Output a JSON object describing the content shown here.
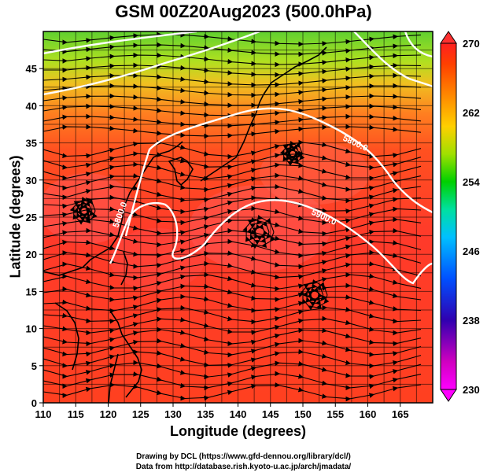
{
  "title": "GSM 00Z20Aug2023 (500.0hPa)",
  "xlabel": "Longitude (degrees)",
  "ylabel": "Latitude  (degrees)",
  "credits": [
    "Drawing by DCL (https://www.gfd-dennou.org/library/dcl/)",
    "Data from http://database.rish.kyoto-u.ac.jp/arch/jmadata/"
  ],
  "x_ticks": [
    "110",
    "115",
    "120",
    "125",
    "130",
    "135",
    "140",
    "145",
    "150",
    "155",
    "160",
    "165"
  ],
  "y_ticks": [
    "0",
    "5",
    "10",
    "15",
    "20",
    "25",
    "30",
    "35",
    "40",
    "45"
  ],
  "colorbar": {
    "labels": [
      "270",
      "262",
      "254",
      "246",
      "238",
      "230"
    ],
    "colors": [
      "#ff00ff",
      "#d000c0",
      "#3000b0",
      "#0050ff",
      "#00c0ff",
      "#00e0a0",
      "#00d000",
      "#a0e000",
      "#ffd000",
      "#ff8000",
      "#ff4000",
      "#ff2020"
    ]
  },
  "contour_labels": [
    "5800.0",
    "5800.0",
    "5900.0"
  ],
  "map": {
    "xlim": [
      110,
      170
    ],
    "ylim": [
      0,
      50
    ],
    "colors": {
      "cold": "#60d030",
      "mid": "#f0a020",
      "warm": "#ff4020",
      "hot": "#ff3030",
      "contour": "#ffffff",
      "coast": "#000000"
    }
  }
}
